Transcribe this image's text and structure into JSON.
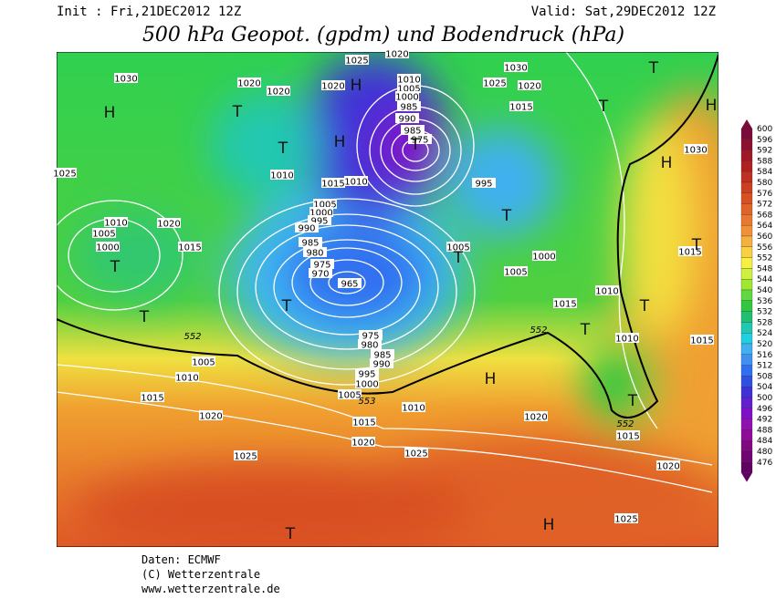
{
  "header": {
    "init": "Init : Fri,21DEC2012 12Z",
    "valid": "Valid: Sat,29DEC2012 12Z",
    "title": "500 hPa Geopot. (gpdm) und Bodendruck (hPa)"
  },
  "colorbar": {
    "labels": [
      600,
      596,
      592,
      588,
      584,
      580,
      576,
      572,
      568,
      564,
      560,
      556,
      552,
      548,
      544,
      540,
      536,
      532,
      528,
      524,
      520,
      516,
      512,
      508,
      504,
      500,
      496,
      492,
      488,
      484,
      480,
      476
    ],
    "colors": [
      "#7a0a3a",
      "#8c1030",
      "#a01828",
      "#b02020",
      "#c03020",
      "#cc4020",
      "#d85020",
      "#e06428",
      "#e87830",
      "#f09038",
      "#f5b040",
      "#f8d040",
      "#f8f040",
      "#d0f040",
      "#a0e830",
      "#60d840",
      "#30c840",
      "#20c070",
      "#20c8b0",
      "#20d0e0",
      "#40b0f0",
      "#4090f0",
      "#3070f0",
      "#3050e0",
      "#4030d8",
      "#6020d0",
      "#8010c8",
      "#9010b0",
      "#900c98",
      "#800880",
      "#700470",
      "#600060"
    ]
  },
  "map": {
    "isobar_labels": [
      "1030",
      "1020",
      "1020",
      "1020",
      "1025",
      "1020",
      "1010",
      "1005",
      "1000",
      "985",
      "990",
      "985",
      "975",
      "1030",
      "1025",
      "1020",
      "1015",
      "1010",
      "1015",
      "1010",
      "995",
      "1030",
      "1025",
      "1010",
      "1005",
      "1000",
      "1020",
      "1015",
      "1005",
      "1000",
      "995",
      "990",
      "985",
      "980",
      "975",
      "970",
      "965",
      "1005",
      "1000",
      "1005",
      "1015",
      "1010",
      "1010",
      "1015",
      "1015",
      "975",
      "980",
      "985",
      "990",
      "995",
      "1000",
      "1005",
      "1005",
      "1010",
      "1015",
      "1020",
      "1010",
      "1015",
      "1020",
      "1020",
      "1015",
      "1025",
      "1025",
      "1020",
      "1025"
    ],
    "contour_552_labels": [
      "552",
      "552",
      "553",
      "552"
    ],
    "pressure_centers": [
      "H",
      "T",
      "T",
      "H",
      "H",
      "T",
      "T",
      "T",
      "T",
      "H",
      "H",
      "T",
      "T",
      "T",
      "T",
      "T",
      "T",
      "T",
      "T",
      "H",
      "H",
      "T"
    ]
  },
  "footer": {
    "source": "Daten: ECMWF",
    "copyright": "(C) Wetterzentrale",
    "url": "www.wetterzentrale.de"
  }
}
